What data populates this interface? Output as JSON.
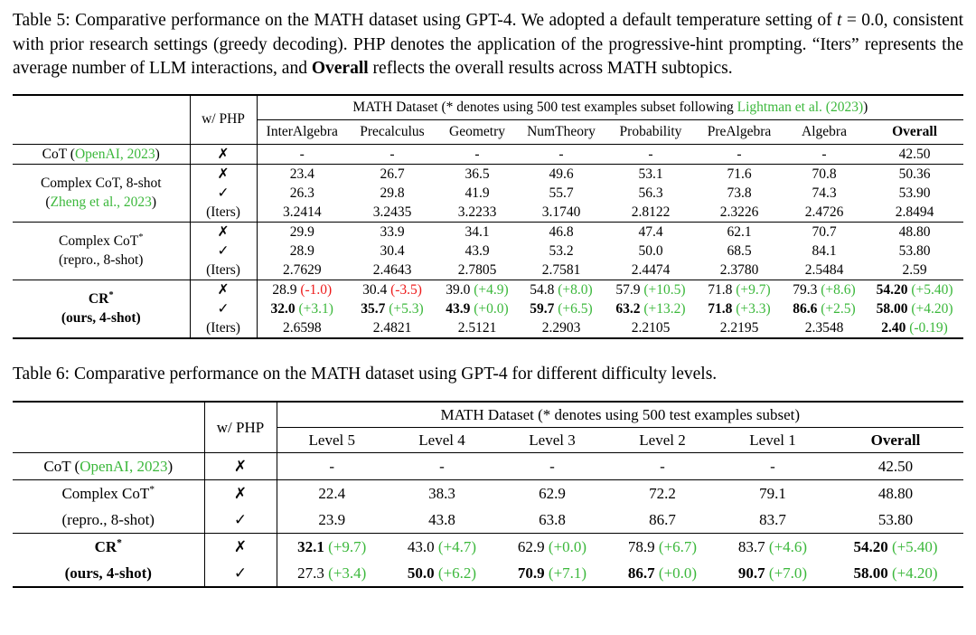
{
  "colors": {
    "green": "#3cb83c",
    "red": "#ee1c1c"
  },
  "caption5": {
    "segments": [
      {
        "t": "Table 5: Comparative performance on the MATH dataset using GPT-4. We adopted a default temperature setting of "
      },
      {
        "t": "t",
        "i": true
      },
      {
        "t": " = 0.0, consistent with prior research settings (greedy decoding). PHP denotes the application of the progressive-hint prompting. “Iters” represents the average number of LLM interactions, and "
      },
      {
        "t": "Overall",
        "b": true
      },
      {
        "t": " reflects the overall results across MATH subtopics."
      }
    ]
  },
  "caption6": {
    "segments": [
      {
        "t": "Table 6: Comparative performance on the MATH dataset using GPT-4 for different difficulty levels."
      }
    ]
  },
  "table5": {
    "php_header": "w/ PHP",
    "dataset_header": [
      {
        "t": "MATH Dataset (* denotes using 500 test examples subset following "
      },
      {
        "t": "Lightman et al. (2023)",
        "c": "green"
      },
      {
        "t": ")"
      }
    ],
    "columns": [
      "InterAlgebra",
      "Precalculus",
      "Geometry",
      "NumTheory",
      "Probability",
      "PreAlgebra",
      "Algebra"
    ],
    "overall_column": "Overall",
    "sections": [
      {
        "label": [
          [
            {
              "t": "CoT ("
            },
            {
              "t": "OpenAI, 2023",
              "c": "green"
            },
            {
              "t": ")"
            }
          ]
        ],
        "rows": [
          {
            "php": "✗",
            "cells": [
              "-",
              "-",
              "-",
              "-",
              "-",
              "-",
              "-",
              "42.50"
            ]
          }
        ]
      },
      {
        "label": [
          [
            {
              "t": "Complex CoT, 8-shot"
            }
          ],
          [
            {
              "t": "("
            },
            {
              "t": "Zheng et al., 2023",
              "c": "green"
            },
            {
              "t": ")"
            }
          ]
        ],
        "rows": [
          {
            "php": "✗",
            "cells": [
              "23.4",
              "26.7",
              "36.5",
              "49.6",
              "53.1",
              "71.6",
              "70.8",
              "50.36"
            ]
          },
          {
            "php": "✓",
            "cells": [
              "26.3",
              "29.8",
              "41.9",
              "55.7",
              "56.3",
              "73.8",
              "74.3",
              "53.90"
            ]
          },
          {
            "php": "(Iters)",
            "cells": [
              "3.2414",
              "3.2435",
              "3.2233",
              "3.1740",
              "2.8122",
              "2.3226",
              "2.4726",
              "2.8494"
            ]
          }
        ]
      },
      {
        "label": [
          [
            {
              "t": "Complex CoT"
            },
            {
              "t": "*",
              "sup": true
            }
          ],
          [
            {
              "t": "(repro., 8-shot)"
            }
          ]
        ],
        "rows": [
          {
            "php": "✗",
            "cells": [
              "29.9",
              "33.9",
              "34.1",
              "46.8",
              "47.4",
              "62.1",
              "70.7",
              "48.80"
            ]
          },
          {
            "php": "✓",
            "cells": [
              "28.9",
              "30.4",
              "43.9",
              "53.2",
              "50.0",
              "68.5",
              "84.1",
              "53.80"
            ]
          },
          {
            "php": "(Iters)",
            "cells": [
              "2.7629",
              "2.4643",
              "2.7805",
              "2.7581",
              "2.4474",
              "2.3780",
              "2.5484",
              "2.59"
            ]
          }
        ]
      },
      {
        "label": [
          [
            {
              "t": "CR",
              "b": true
            },
            {
              "t": "*",
              "b": true,
              "sup": true
            }
          ],
          [
            {
              "t": "(",
              "b": true
            },
            {
              "t": "ours",
              "b": true
            },
            {
              "t": ", 4-shot)",
              "b": true
            }
          ]
        ],
        "rows": [
          {
            "php": "✗",
            "cells": [
              {
                "v": "28.9",
                "d": "(-1.0)",
                "dc": "r"
              },
              {
                "v": "30.4",
                "d": "(-3.5)",
                "dc": "r"
              },
              {
                "v": "39.0",
                "d": "(+4.9)",
                "dc": "g"
              },
              {
                "v": "54.8",
                "d": "(+8.0)",
                "dc": "g"
              },
              {
                "v": "57.9",
                "d": "(+10.5)",
                "dc": "g"
              },
              {
                "v": "71.8",
                "d": "(+9.7)",
                "dc": "g"
              },
              {
                "v": "79.3",
                "d": "(+8.6)",
                "dc": "g"
              },
              {
                "v": "54.20",
                "b": true,
                "d": "(+5.40)",
                "dc": "g"
              }
            ]
          },
          {
            "php": "✓",
            "cells": [
              {
                "v": "32.0",
                "b": true,
                "d": "(+3.1)",
                "dc": "g"
              },
              {
                "v": "35.7",
                "b": true,
                "d": "(+5.3)",
                "dc": "g"
              },
              {
                "v": "43.9",
                "b": true,
                "d": "(+0.0)",
                "dc": "g"
              },
              {
                "v": "59.7",
                "b": true,
                "d": "(+6.5)",
                "dc": "g"
              },
              {
                "v": "63.2",
                "b": true,
                "d": "(+13.2)",
                "dc": "g"
              },
              {
                "v": "71.8",
                "b": true,
                "d": "(+3.3)",
                "dc": "g"
              },
              {
                "v": "86.6",
                "b": true,
                "d": "(+2.5)",
                "dc": "g"
              },
              {
                "v": "58.00",
                "b": true,
                "d": "(+4.20)",
                "dc": "g"
              }
            ]
          },
          {
            "php": "(Iters)",
            "cells": [
              "2.6598",
              "2.4821",
              "2.5121",
              "2.2903",
              "2.2105",
              "2.2195",
              "2.3548",
              {
                "v": "2.40",
                "b": true,
                "d": "(-0.19)",
                "dc": "g"
              }
            ]
          }
        ]
      }
    ]
  },
  "table6": {
    "php_header": "w/ PHP",
    "dataset_header": [
      {
        "t": "MATH Dataset (* denotes using 500 test examples subset)"
      }
    ],
    "columns": [
      "Level 5",
      "Level 4",
      "Level 3",
      "Level 2",
      "Level 1"
    ],
    "overall_column": "Overall",
    "sections": [
      {
        "label": [
          [
            {
              "t": "CoT ("
            },
            {
              "t": "OpenAI, 2023",
              "c": "green"
            },
            {
              "t": ")"
            }
          ]
        ],
        "rows": [
          {
            "php": "✗",
            "cells": [
              "-",
              "-",
              "-",
              "-",
              "-",
              "42.50"
            ]
          }
        ]
      },
      {
        "label": [
          [
            {
              "t": "Complex CoT"
            },
            {
              "t": "*",
              "sup": true
            }
          ],
          [
            {
              "t": "(repro., 8-shot)"
            }
          ]
        ],
        "rows": [
          {
            "php": "✗",
            "cells": [
              "22.4",
              "38.3",
              "62.9",
              "72.2",
              "79.1",
              "48.80"
            ]
          },
          {
            "php": "✓",
            "cells": [
              "23.9",
              "43.8",
              "63.8",
              "86.7",
              "83.7",
              "53.80"
            ]
          }
        ]
      },
      {
        "label": [
          [
            {
              "t": "CR",
              "b": true
            },
            {
              "t": "*",
              "b": true,
              "sup": true
            }
          ],
          [
            {
              "t": "(",
              "b": true
            },
            {
              "t": "ours",
              "b": true
            },
            {
              "t": ", 4-shot)",
              "b": true
            }
          ]
        ],
        "rows": [
          {
            "php": "✗",
            "cells": [
              {
                "v": "32.1",
                "b": true,
                "d": "(+9.7)",
                "dc": "g"
              },
              {
                "v": "43.0",
                "d": "(+4.7)",
                "dc": "g"
              },
              {
                "v": "62.9",
                "d": "(+0.0)",
                "dc": "g"
              },
              {
                "v": "78.9",
                "d": "(+6.7)",
                "dc": "g"
              },
              {
                "v": "83.7",
                "d": "(+4.6)",
                "dc": "g"
              },
              {
                "v": "54.20",
                "b": true,
                "d": "(+5.40)",
                "dc": "g"
              }
            ]
          },
          {
            "php": "✓",
            "cells": [
              {
                "v": "27.3",
                "d": "(+3.4)",
                "dc": "g"
              },
              {
                "v": "50.0",
                "b": true,
                "d": "(+6.2)",
                "dc": "g"
              },
              {
                "v": "70.9",
                "b": true,
                "d": "(+7.1)",
                "dc": "g"
              },
              {
                "v": "86.7",
                "b": true,
                "d": "(+0.0)",
                "dc": "g"
              },
              {
                "v": "90.7",
                "b": true,
                "d": "(+7.0)",
                "dc": "g"
              },
              {
                "v": "58.00",
                "b": true,
                "d": "(+4.20)",
                "dc": "g"
              }
            ]
          }
        ]
      }
    ]
  }
}
